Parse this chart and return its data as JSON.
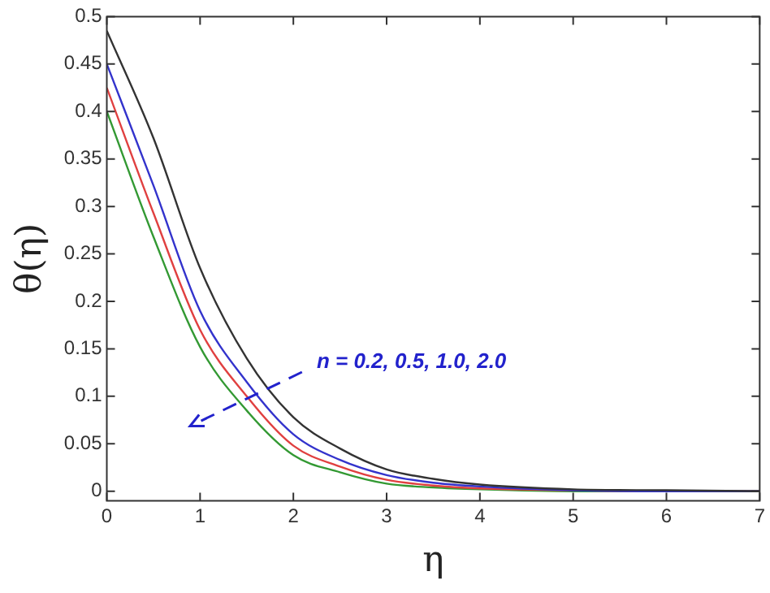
{
  "chart_data": {
    "type": "line",
    "xlabel": "η",
    "ylabel": "θ(η)",
    "x": [
      0,
      0.5,
      1,
      1.5,
      2,
      2.5,
      3,
      3.5,
      4,
      5,
      6,
      7
    ],
    "series": [
      {
        "color": "#333333",
        "values": [
          0.485,
          0.372,
          0.235,
          0.14,
          0.078,
          0.045,
          0.023,
          0.013,
          0.007,
          0.002,
          0.001,
          0.0
        ]
      },
      {
        "color": "#3333cc",
        "values": [
          0.45,
          0.322,
          0.19,
          0.115,
          0.06,
          0.033,
          0.017,
          0.009,
          0.005,
          0.001,
          0.0,
          0.0
        ]
      },
      {
        "color": "#e04040",
        "values": [
          0.425,
          0.293,
          0.17,
          0.1,
          0.048,
          0.026,
          0.012,
          0.006,
          0.003,
          0.001,
          0.0,
          0.0
        ]
      },
      {
        "color": "#339933",
        "values": [
          0.4,
          0.268,
          0.152,
          0.085,
          0.038,
          0.02,
          0.008,
          0.004,
          0.002,
          0.0,
          0.0,
          0.0
        ]
      }
    ],
    "annotations": [
      "n = 0.2, 0.5, 1.0, 2.0"
    ],
    "xlim": [
      0,
      7
    ],
    "xticks": [
      0,
      1,
      2,
      3,
      4,
      5,
      6,
      7
    ],
    "ylim": [
      -0.01,
      0.5
    ],
    "yticks": [
      0,
      0.05,
      0.1,
      0.15,
      0.2,
      0.25,
      0.3,
      0.35,
      0.4,
      0.45,
      0.5
    ],
    "grid": false,
    "legend": false,
    "marker": "none",
    "line_style": "solid"
  }
}
